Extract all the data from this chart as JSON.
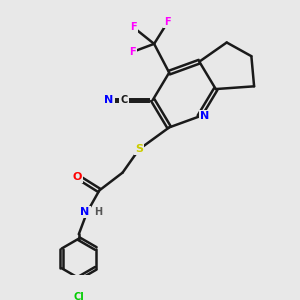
{
  "bg_color": "#e8e8e8",
  "bond_color": "#1a1a1a",
  "atom_colors": {
    "N": "#0000ff",
    "O": "#ff0000",
    "S": "#cccc00",
    "Cl": "#00cc00",
    "F": "#ff00ff",
    "C": "#1a1a1a",
    "H": "#555555"
  }
}
